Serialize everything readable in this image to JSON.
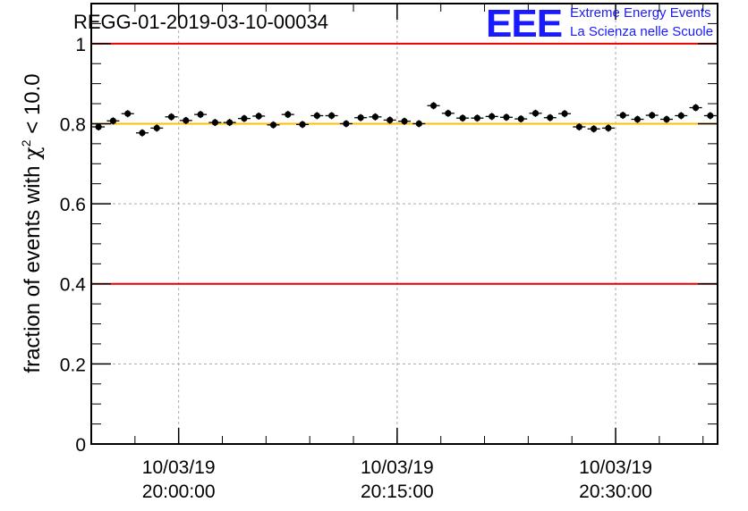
{
  "chart_data": {
    "type": "scatter",
    "title": "REGG-01-2019-03-10-00034",
    "ylabel": "fraction of events with χ² < 10.0",
    "ylabel_parts": {
      "prefix": "fraction of events with ",
      "chi": "χ",
      "sup": "2",
      "suffix": " < 10.0"
    },
    "ylim": [
      0,
      1.1
    ],
    "xlim": [
      "2019-03-10 19:54:00",
      "2019-03-10 20:37:00"
    ],
    "grid": true,
    "yticks": [
      {
        "value": 0,
        "label": "0"
      },
      {
        "value": 0.2,
        "label": "0.2"
      },
      {
        "value": 0.4,
        "label": "0.4"
      },
      {
        "value": 0.6,
        "label": "0.6"
      },
      {
        "value": 0.8,
        "label": "0.8"
      },
      {
        "value": 1,
        "label": "1"
      }
    ],
    "xticks": [
      {
        "value": "2019-03-10 20:00:00",
        "date": "10/03/19",
        "time": "20:00:00"
      },
      {
        "value": "2019-03-10 20:15:00",
        "date": "10/03/19",
        "time": "20:15:00"
      },
      {
        "value": "2019-03-10 20:30:00",
        "date": "10/03/19",
        "time": "20:30:00"
      }
    ],
    "reference_lines": [
      {
        "y": 1.0,
        "color": "#e60000"
      },
      {
        "y": 0.4,
        "color": "#e60000"
      },
      {
        "y": 0.8,
        "color": "#ffbf00"
      }
    ],
    "series": [
      {
        "color": "#000000",
        "x": [
          "2019-03-10 19:54:30",
          "2019-03-10 19:55:30",
          "2019-03-10 19:56:30",
          "2019-03-10 19:57:30",
          "2019-03-10 19:58:30",
          "2019-03-10 19:59:30",
          "2019-03-10 20:00:30",
          "2019-03-10 20:01:30",
          "2019-03-10 20:02:30",
          "2019-03-10 20:03:30",
          "2019-03-10 20:04:30",
          "2019-03-10 20:05:30",
          "2019-03-10 20:06:30",
          "2019-03-10 20:07:30",
          "2019-03-10 20:08:30",
          "2019-03-10 20:09:30",
          "2019-03-10 20:10:30",
          "2019-03-10 20:11:30",
          "2019-03-10 20:12:30",
          "2019-03-10 20:13:30",
          "2019-03-10 20:14:30",
          "2019-03-10 20:15:30",
          "2019-03-10 20:16:30",
          "2019-03-10 20:17:30",
          "2019-03-10 20:18:30",
          "2019-03-10 20:19:30",
          "2019-03-10 20:20:30",
          "2019-03-10 20:21:30",
          "2019-03-10 20:22:30",
          "2019-03-10 20:23:30",
          "2019-03-10 20:24:30",
          "2019-03-10 20:25:30",
          "2019-03-10 20:26:30",
          "2019-03-10 20:27:30",
          "2019-03-10 20:28:30",
          "2019-03-10 20:29:30",
          "2019-03-10 20:30:30",
          "2019-03-10 20:31:30",
          "2019-03-10 20:32:30",
          "2019-03-10 20:33:30",
          "2019-03-10 20:34:30",
          "2019-03-10 20:35:30",
          "2019-03-10 20:36:30"
        ],
        "y": [
          0.792,
          0.807,
          0.825,
          0.777,
          0.789,
          0.817,
          0.808,
          0.823,
          0.803,
          0.803,
          0.813,
          0.819,
          0.797,
          0.823,
          0.798,
          0.82,
          0.82,
          0.8,
          0.815,
          0.817,
          0.809,
          0.806,
          0.8,
          0.845,
          0.826,
          0.814,
          0.814,
          0.818,
          0.816,
          0.812,
          0.826,
          0.815,
          0.825,
          0.792,
          0.787,
          0.789,
          0.821,
          0.811,
          0.821,
          0.811,
          0.82,
          0.84,
          0.82
        ],
        "yerr": [
          0.009,
          0.009,
          0.009,
          0.009,
          0.009,
          0.009,
          0.009,
          0.009,
          0.009,
          0.009,
          0.009,
          0.009,
          0.009,
          0.009,
          0.009,
          0.009,
          0.009,
          0.009,
          0.009,
          0.009,
          0.009,
          0.009,
          0.009,
          0.009,
          0.009,
          0.009,
          0.009,
          0.009,
          0.009,
          0.009,
          0.009,
          0.009,
          0.009,
          0.009,
          0.009,
          0.009,
          0.009,
          0.009,
          0.009,
          0.009,
          0.009,
          0.009,
          0.009
        ]
      }
    ]
  },
  "logo": {
    "letters": "EEE",
    "line1": "Extreme Energy Events",
    "line2": "La Scienza nelle Scuole",
    "color": "#1a1aff"
  }
}
